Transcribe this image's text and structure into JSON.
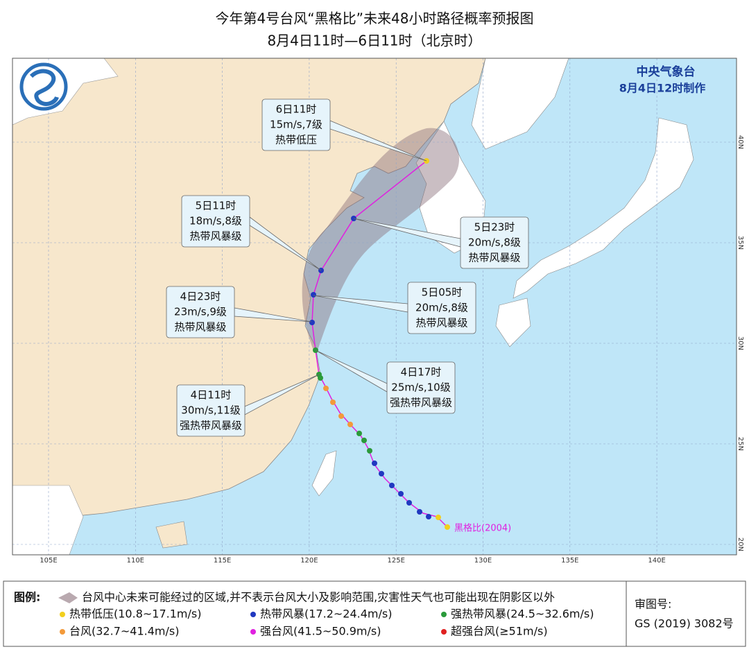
{
  "title": "今年第4号台风“黑格比”未来48小时路径概率预报图",
  "subtitle": "8月4日11时—6日11时（北京时）",
  "issuer": {
    "name": "中央气象台",
    "time": "8月4日12时制作"
  },
  "map": {
    "lon_labels": [
      "105E",
      "110E",
      "115E",
      "120E",
      "125E",
      "130E",
      "135E",
      "140E"
    ],
    "lat_labels": [
      "20N",
      "25N",
      "30N",
      "35N",
      "40N"
    ],
    "storm_label": "黑格比(2004)"
  },
  "callouts": [
    {
      "time": "6日11时",
      "wind": "15m/s,7级",
      "grade": "热带低压"
    },
    {
      "time": "5日11时",
      "wind": "18m/s,8级",
      "grade": "热带风暴级"
    },
    {
      "time": "4日23时",
      "wind": "23m/s,9级",
      "grade": "热带风暴级"
    },
    {
      "time": "4日11时",
      "wind": "30m/s,11级",
      "grade": "强热带风暴级"
    },
    {
      "time": "5日23时",
      "wind": "20m/s,8级",
      "grade": "热带风暴级"
    },
    {
      "time": "5日05时",
      "wind": "20m/s,8级",
      "grade": "热带风暴级"
    },
    {
      "time": "4日17时",
      "wind": "25m/s,10级",
      "grade": "强热带风暴级"
    }
  ],
  "legend": {
    "title": "图例:",
    "cone": "台风中心未来可能经过的区域,并不表示台风大小及影响范围,灾害性天气也可能出现在阴影区以外",
    "items": [
      {
        "label": "热带低压(10.8~17.1m/s)",
        "color": "#f2cf1d"
      },
      {
        "label": "热带风暴(17.2~24.4m/s)",
        "color": "#2038c0"
      },
      {
        "label": "强热带风暴(24.5~32.6m/s)",
        "color": "#2a9a3a"
      },
      {
        "label": "台风(32.7~41.4m/s)",
        "color": "#f39a3a"
      },
      {
        "label": "强台风(41.5~50.9m/s)",
        "color": "#e020e0"
      },
      {
        "label": "超强台风(≥51m/s)",
        "color": "#e02020"
      }
    ]
  },
  "approval": {
    "label": "审图号:",
    "number": "GS (2019) 3082号"
  }
}
